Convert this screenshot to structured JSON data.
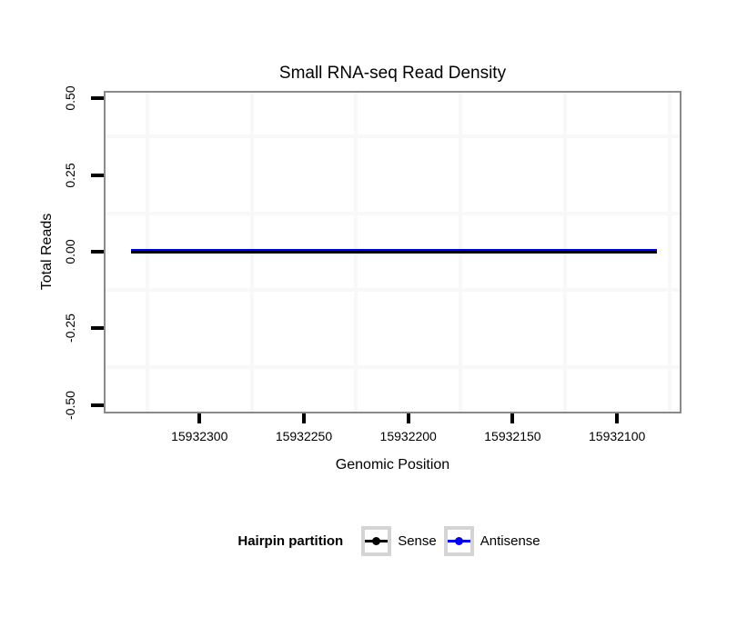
{
  "chart_data": {
    "type": "line",
    "title": "Small RNA-seq Read Density",
    "xlabel": "Genomic Position",
    "ylabel": "Total Reads",
    "x_axis": {
      "reversed": true,
      "domain": [
        15932345,
        15932070
      ],
      "ticks": [
        15932300,
        15932250,
        15932200,
        15932150,
        15932100
      ],
      "tick_labels": [
        "15932300",
        "15932250",
        "15932200",
        "15932150",
        "15932100"
      ],
      "minor_gridlines": [
        15932325,
        15932275,
        15932225,
        15932175,
        15932125,
        15932075
      ]
    },
    "y_axis": {
      "domain": [
        -0.521,
        0.518
      ],
      "ticks": [
        0.5,
        0.25,
        0,
        -0.25,
        -0.5
      ],
      "tick_labels": [
        "0.50",
        "0.25",
        "0.00",
        "-0.25",
        "-0.50"
      ],
      "minor_gridlines": [
        0.375,
        0.125,
        -0.125,
        -0.375
      ]
    },
    "series": [
      {
        "name": "Sense",
        "color": "#000000",
        "x": [
          15932333,
          15932081
        ],
        "y": [
          0,
          0
        ],
        "stroke_px": 3
      },
      {
        "name": "Antisense",
        "color": "#0000EE",
        "x": [
          15932333,
          15932081
        ],
        "y": [
          0,
          0
        ],
        "stroke_px": 4
      }
    ],
    "legend": {
      "title": "Hairpin partition",
      "position": "bottom",
      "entries": [
        {
          "label": "Sense",
          "color": "#000000"
        },
        {
          "label": "Antisense",
          "color": "#0000EE"
        }
      ]
    },
    "grid": "minor-only",
    "colors": {
      "panel_border": "#8a8a8a",
      "gridline": "#f8f8f8",
      "tick": "#000000",
      "legend_key_border": "#d4d4d4",
      "background": "#ffffff"
    }
  }
}
